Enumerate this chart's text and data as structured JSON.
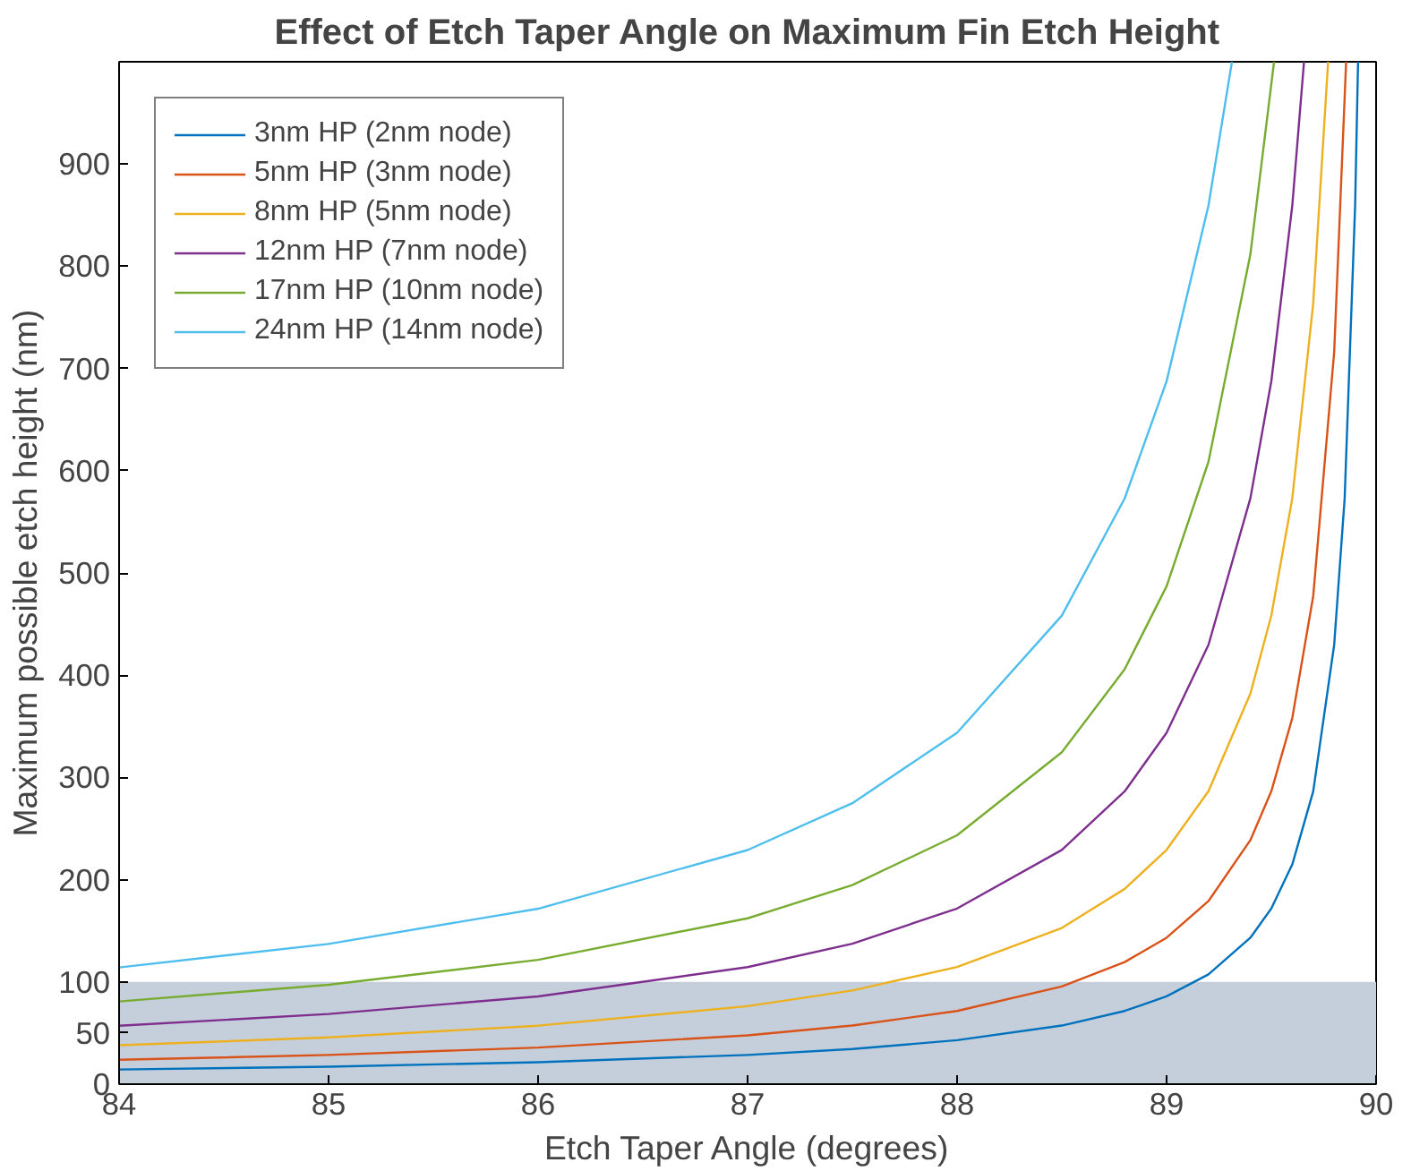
{
  "chart_data": {
    "type": "line",
    "title": "Effect of Etch Taper Angle on Maximum Fin Etch Height",
    "xlabel": "Etch Taper Angle (degrees)",
    "ylabel": "Maximum possible etch height (nm)",
    "xlim": [
      84,
      90
    ],
    "ylim": [
      0,
      1000
    ],
    "xticks": [
      84,
      85,
      86,
      87,
      88,
      89,
      90
    ],
    "yticks": [
      0,
      50,
      100,
      200,
      300,
      400,
      500,
      600,
      700,
      800,
      900
    ],
    "grid": false,
    "legend": "top left",
    "line_style": "solid",
    "marker": "none",
    "bands": [
      {
        "axis": "y",
        "from": 0,
        "to": 100,
        "label": null,
        "color": "#c5cfdb"
      }
    ],
    "series": [
      {
        "name": "3nm HP (2nm node)",
        "color": "#0072bd",
        "x": [
          84,
          85,
          86,
          87,
          87.5,
          88,
          88.5,
          88.8,
          89,
          89.2,
          89.4,
          89.5,
          89.6,
          89.7,
          89.8,
          89.85,
          89.9,
          89.914
        ],
        "values": [
          14.3,
          17.1,
          21.5,
          28.6,
          34.4,
          43,
          57.3,
          71.6,
          85.9,
          107.4,
          143.2,
          171.9,
          214.9,
          286.5,
          429.7,
          573,
          859.5,
          1000
        ]
      },
      {
        "name": "5nm HP (3nm node)",
        "color": "#d95319",
        "x": [
          84,
          85,
          86,
          87,
          87.5,
          88,
          88.5,
          88.8,
          89,
          89.2,
          89.4,
          89.5,
          89.6,
          89.7,
          89.8,
          89.857
        ],
        "values": [
          23.8,
          28.6,
          35.8,
          47.7,
          57.3,
          71.6,
          95.5,
          119.4,
          143.2,
          179.1,
          238.7,
          286.5,
          358.1,
          477.5,
          716.2,
          1000
        ]
      },
      {
        "name": "8nm HP (5nm node)",
        "color": "#edb120",
        "x": [
          84,
          85,
          86,
          87,
          87.5,
          88,
          88.5,
          88.8,
          89,
          89.2,
          89.4,
          89.5,
          89.6,
          89.7,
          89.771
        ],
        "values": [
          38.1,
          45.7,
          57.2,
          76.3,
          91.6,
          114.6,
          152.8,
          191,
          229.2,
          286.5,
          382,
          458.4,
          572.9,
          763.9,
          1000
        ]
      },
      {
        "name": "12nm HP (7nm node)",
        "color": "#7e2f8e",
        "x": [
          84,
          85,
          86,
          87,
          87.5,
          88,
          88.5,
          88.8,
          89,
          89.2,
          89.4,
          89.5,
          89.6,
          89.656
        ],
        "values": [
          57.1,
          68.6,
          85.8,
          114.5,
          137.4,
          171.8,
          229.1,
          286.4,
          343.7,
          429.7,
          573,
          687.6,
          859.4,
          1000
        ]
      },
      {
        "name": "17nm HP (10nm node)",
        "color": "#77ac30",
        "x": [
          84,
          85,
          86,
          87,
          87.5,
          88,
          88.5,
          88.8,
          89,
          89.2,
          89.4,
          89.513
        ],
        "values": [
          80.9,
          97.2,
          121.6,
          162.2,
          194.7,
          243.4,
          324.6,
          405.8,
          487,
          608.8,
          811.7,
          1000
        ]
      },
      {
        "name": "24nm HP (14nm node)",
        "color": "#4dbeee",
        "x": [
          84,
          85,
          86,
          87,
          87.5,
          88,
          88.5,
          88.8,
          89,
          89.2,
          89.312
        ],
        "values": [
          114.2,
          137.2,
          171.6,
          229,
          274.8,
          343.7,
          458.3,
          572.9,
          687.5,
          859.4,
          1000
        ]
      }
    ]
  }
}
